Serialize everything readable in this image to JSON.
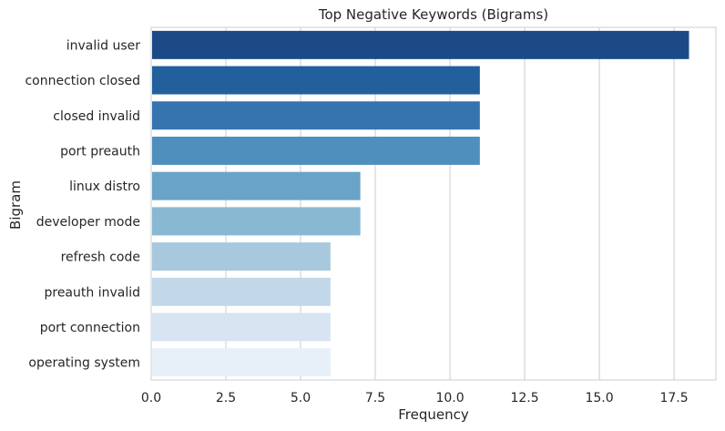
{
  "chart_data": {
    "type": "bar",
    "orientation": "horizontal",
    "title": "Top Negative Keywords (Bigrams)",
    "xlabel": "Frequency",
    "ylabel": "Bigram",
    "xlim": [
      0,
      18.9
    ],
    "xticks": [
      0.0,
      2.5,
      5.0,
      7.5,
      10.0,
      12.5,
      15.0,
      17.5
    ],
    "xtick_labels": [
      "0.0",
      "2.5",
      "5.0",
      "7.5",
      "10.0",
      "12.5",
      "15.0",
      "17.5"
    ],
    "grid": "vertical",
    "categories": [
      "invalid user",
      "connection closed",
      "closed invalid",
      "port preauth",
      "linux distro",
      "developer mode",
      "refresh code",
      "preauth invalid",
      "port connection",
      "operating system"
    ],
    "values": [
      18,
      11,
      11,
      11,
      7,
      7,
      6,
      6,
      6,
      6
    ],
    "colors": [
      "#1b4a87",
      "#225f9c",
      "#3674af",
      "#4f8fbd",
      "#6aa3c8",
      "#89b8d3",
      "#a8c9dd",
      "#c2d8e9",
      "#d7e4f2",
      "#e7eff8"
    ]
  }
}
